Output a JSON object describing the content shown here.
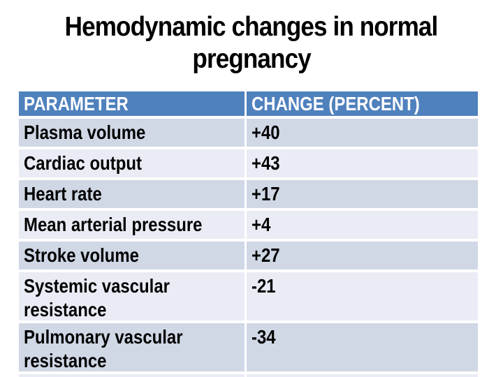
{
  "slide": {
    "title_line1": "Hemodynamic changes in normal",
    "title_line2": "pregnancy"
  },
  "table": {
    "headers": [
      "PARAMETER",
      "CHANGE (PERCENT)"
    ],
    "rows": [
      {
        "parameter": "Plasma volume",
        "change": "+40"
      },
      {
        "parameter": "Cardiac output",
        "change": "+43"
      },
      {
        "parameter": "Heart rate",
        "change": "+17"
      },
      {
        "parameter": "Mean arterial pressure",
        "change": "+4"
      },
      {
        "parameter": "Stroke volume",
        "change": "+27"
      },
      {
        "parameter": "Systemic vascular resistance",
        "change": "-21"
      },
      {
        "parameter": "Pulmonary vascular resistance",
        "change": "-34"
      }
    ]
  },
  "colors": {
    "header_bg": "#4F81BD",
    "header_text": "#FFFFFF",
    "row_dark": "#D0D7E5",
    "row_light": "#E9ECF4",
    "body_text": "#000000",
    "background": "#FFFFFF"
  }
}
